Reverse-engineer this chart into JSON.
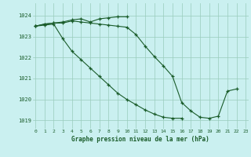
{
  "title": "Graphe pression niveau de la mer (hPa)",
  "bg_color": "#caf0f0",
  "grid_color": "#99ccbb",
  "line_color": "#1a5c2a",
  "marker_color": "#1a5c2a",
  "tick_color": "#1a5c2a",
  "ylabel_ticks": [
    1019,
    1020,
    1021,
    1022,
    1023,
    1024
  ],
  "xlim": [
    -0.3,
    23.3
  ],
  "ylim": [
    1018.6,
    1024.6
  ],
  "s1": [
    1023.5,
    1023.6,
    1023.65,
    1023.65,
    1023.75,
    1023.7,
    1023.65,
    1023.6,
    1023.55,
    1023.5,
    1023.45,
    1023.1,
    1022.55,
    1022.05,
    1021.6,
    1021.1,
    1019.85,
    1019.45,
    1019.15,
    1019.1,
    1019.2,
    1020.4,
    1020.5,
    null
  ],
  "s2": [
    1023.5,
    1023.6,
    1023.65,
    1023.7,
    1023.8,
    1023.85,
    1023.7,
    1023.85,
    1023.9,
    1023.95,
    1023.95,
    null,
    null,
    null,
    null,
    null,
    null,
    null,
    null,
    null,
    null,
    null,
    null,
    null
  ],
  "s3": [
    1023.5,
    1023.55,
    1023.6,
    1022.9,
    1022.3,
    1021.9,
    1021.5,
    1021.1,
    1020.7,
    1020.3,
    1020.0,
    1019.75,
    1019.5,
    1019.3,
    1019.15,
    1019.1,
    1019.1,
    null,
    null,
    null,
    null,
    null,
    null,
    null
  ],
  "hours": [
    0,
    1,
    2,
    3,
    4,
    5,
    6,
    7,
    8,
    9,
    10,
    11,
    12,
    13,
    14,
    15,
    16,
    17,
    18,
    19,
    20,
    21,
    22,
    23
  ]
}
